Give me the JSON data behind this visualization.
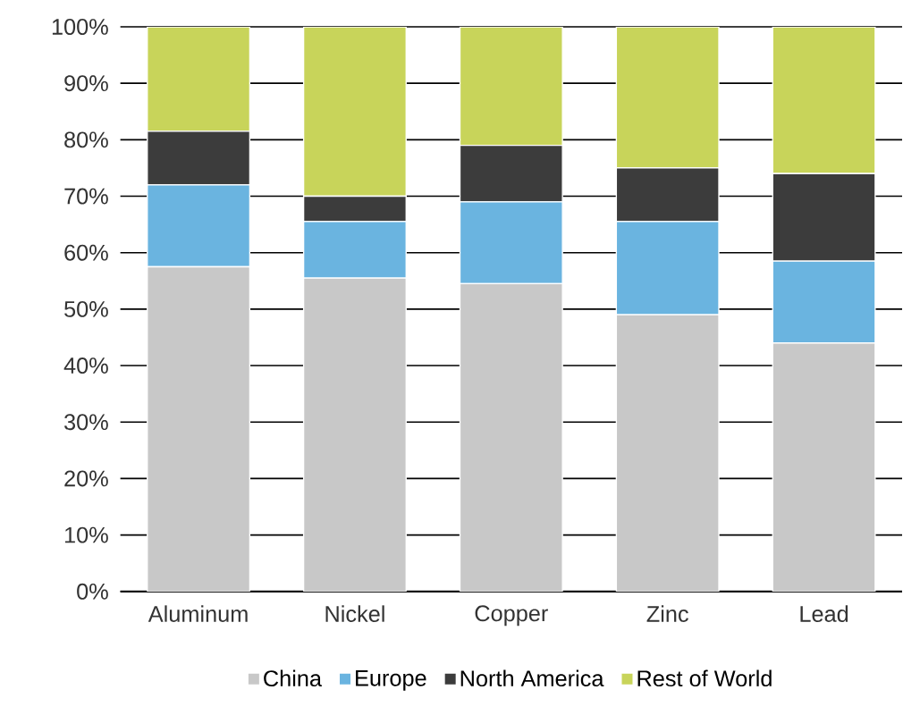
{
  "chart_data": {
    "type": "bar",
    "stacked": true,
    "categories": [
      "Aluminum",
      "Nickel",
      "Copper",
      "Zinc",
      "Lead"
    ],
    "series": [
      {
        "name": "China",
        "color": "#c8c8c8",
        "values": [
          57.5,
          55.5,
          54.5,
          49,
          44
        ]
      },
      {
        "name": "Europe",
        "color": "#6ab4e0",
        "values": [
          14.5,
          10,
          14.5,
          16.5,
          14.5
        ]
      },
      {
        "name": "North America",
        "color": "#3c3c3c",
        "values": [
          9.5,
          4.5,
          10,
          9.5,
          15.5
        ]
      },
      {
        "name": "Rest of World",
        "color": "#c8d45a",
        "values": [
          18.5,
          30,
          21,
          25,
          26
        ]
      }
    ],
    "ylim": [
      0,
      100
    ],
    "yticks": [
      {
        "value": 0,
        "label": "0%"
      },
      {
        "value": 10,
        "label": "10%"
      },
      {
        "value": 20,
        "label": "20%"
      },
      {
        "value": 30,
        "label": "30%"
      },
      {
        "value": 40,
        "label": "40%"
      },
      {
        "value": 50,
        "label": "50%"
      },
      {
        "value": 60,
        "label": "60%"
      },
      {
        "value": 70,
        "label": "70%"
      },
      {
        "value": 80,
        "label": "80%"
      },
      {
        "value": 90,
        "label": "90%"
      },
      {
        "value": 100,
        "label": "100%"
      }
    ],
    "grid": "y",
    "legend": "bottom"
  }
}
